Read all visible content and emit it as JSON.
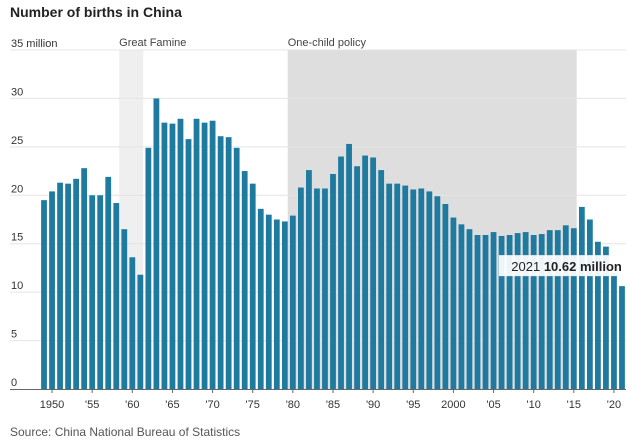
{
  "chart_data": {
    "type": "bar",
    "title": "Number of births in China",
    "source": "Source: China National Bureau of Statistics",
    "y_unit_label": "35 million",
    "ylim": [
      0,
      35
    ],
    "y_ticks": [
      0,
      5,
      10,
      15,
      20,
      25,
      30,
      35
    ],
    "grid": true,
    "bar_color": "#1f7aa0",
    "x": [
      1949,
      1950,
      1951,
      1952,
      1953,
      1954,
      1955,
      1956,
      1957,
      1958,
      1959,
      1960,
      1961,
      1962,
      1963,
      1964,
      1965,
      1966,
      1967,
      1968,
      1969,
      1970,
      1971,
      1972,
      1973,
      1974,
      1975,
      1976,
      1977,
      1978,
      1979,
      1980,
      1981,
      1982,
      1983,
      1984,
      1985,
      1986,
      1987,
      1988,
      1989,
      1990,
      1991,
      1992,
      1993,
      1994,
      1995,
      1996,
      1997,
      1998,
      1999,
      2000,
      2001,
      2002,
      2003,
      2004,
      2005,
      2006,
      2007,
      2008,
      2009,
      2010,
      2011,
      2012,
      2013,
      2014,
      2015,
      2016,
      2017,
      2018,
      2019,
      2020,
      2021
    ],
    "values": [
      19.5,
      20.4,
      21.3,
      21.2,
      21.7,
      22.8,
      20.0,
      20.0,
      21.9,
      19.2,
      16.5,
      13.6,
      11.8,
      24.9,
      30.0,
      27.5,
      27.4,
      27.9,
      25.8,
      27.9,
      27.5,
      27.7,
      26.1,
      26.0,
      24.9,
      22.5,
      21.2,
      18.6,
      18.0,
      17.5,
      17.3,
      17.9,
      20.8,
      22.6,
      20.7,
      20.7,
      22.2,
      24.0,
      25.3,
      23.0,
      24.1,
      23.9,
      22.6,
      21.2,
      21.2,
      21.0,
      20.6,
      20.7,
      20.4,
      19.9,
      19.1,
      17.7,
      17.0,
      16.5,
      15.9,
      15.9,
      16.2,
      15.8,
      15.9,
      16.1,
      16.2,
      15.9,
      16.0,
      16.4,
      16.4,
      16.9,
      16.6,
      18.8,
      17.5,
      15.2,
      14.7,
      12.0,
      10.62
    ],
    "x_ticks": [
      {
        "year": 1950,
        "label": "1950"
      },
      {
        "year": 1955,
        "label": "'55"
      },
      {
        "year": 1960,
        "label": "'60"
      },
      {
        "year": 1965,
        "label": "'65"
      },
      {
        "year": 1970,
        "label": "'70"
      },
      {
        "year": 1975,
        "label": "'75"
      },
      {
        "year": 1980,
        "label": "'80"
      },
      {
        "year": 1985,
        "label": "'85"
      },
      {
        "year": 1990,
        "label": "'90"
      },
      {
        "year": 1995,
        "label": "'95"
      },
      {
        "year": 2000,
        "label": "2000"
      },
      {
        "year": 2005,
        "label": "'05"
      },
      {
        "year": 2010,
        "label": "'10"
      },
      {
        "year": 2015,
        "label": "'15"
      },
      {
        "year": 2020,
        "label": "'20"
      }
    ],
    "shaded_periods": [
      {
        "label": "Great Famine",
        "start": 1959,
        "end": 1961,
        "color": "#efefef"
      },
      {
        "label": "One-child policy",
        "start": 1980,
        "end": 2015,
        "color": "#dedede"
      }
    ],
    "annotation": {
      "year_label": "2021",
      "value_label": "10.62 million"
    }
  }
}
